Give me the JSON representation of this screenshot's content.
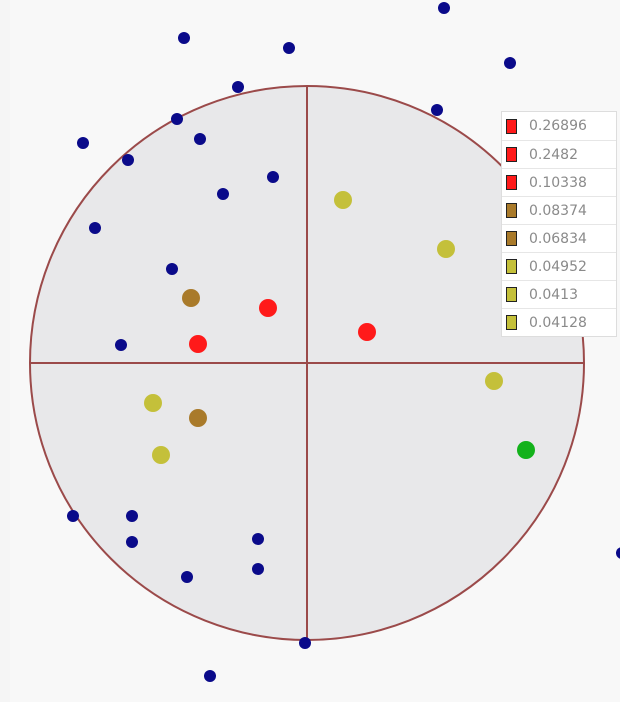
{
  "colors": {
    "circle_fill": "#e8e8ea",
    "circle_stroke": "#9b4a4a",
    "point_blue": "#0a0a8a",
    "point_red": "#ff1a1a",
    "point_brown": "#a97a2a",
    "point_olive": "#c4c03a",
    "point_green": "#13b21b"
  },
  "legend": [
    {
      "label": "0.26896",
      "color": "#ff1a1a"
    },
    {
      "label": "0.2482",
      "color": "#ff1a1a"
    },
    {
      "label": "0.10338",
      "color": "#ff1a1a"
    },
    {
      "label": "0.08374",
      "color": "#a97a2a"
    },
    {
      "label": "0.06834",
      "color": "#a97a2a"
    },
    {
      "label": "0.04952",
      "color": "#c4c03a"
    },
    {
      "label": "0.0413",
      "color": "#c4c03a"
    },
    {
      "label": "0.04128",
      "color": "#c4c03a"
    }
  ]
}
